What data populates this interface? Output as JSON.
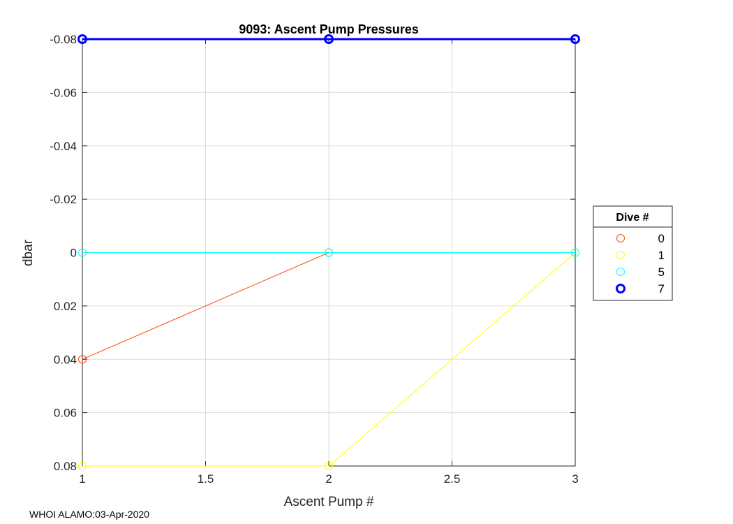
{
  "chart_data": {
    "type": "line",
    "title": "9093: Ascent Pump Pressures",
    "xlabel": "Ascent Pump #",
    "ylabel": "dbar",
    "xlim": [
      1,
      3
    ],
    "ylim": [
      -0.08,
      0.08
    ],
    "y_reversed": true,
    "grid": true,
    "xticks": [
      1,
      1.5,
      2,
      2.5,
      3
    ],
    "xtick_labels": [
      "1",
      "1.5",
      "2",
      "2.5",
      "3"
    ],
    "yticks": [
      -0.08,
      -0.06,
      -0.04,
      -0.02,
      0,
      0.02,
      0.04,
      0.06,
      0.08
    ],
    "ytick_labels": [
      "-0.08",
      "-0.06",
      "-0.04",
      "-0.02",
      "0",
      "0.02",
      "0.04",
      "0.06",
      "0.08"
    ],
    "x": [
      1,
      2,
      3
    ],
    "series": [
      {
        "name": "0",
        "values": [
          0.04,
          0,
          0
        ],
        "color": "#ff4500",
        "width": 1,
        "marker_width": 1
      },
      {
        "name": "1",
        "values": [
          0.08,
          0.08,
          0
        ],
        "color": "#ffff00",
        "width": 1,
        "marker_width": 1
      },
      {
        "name": "5",
        "values": [
          0,
          0,
          0
        ],
        "color": "#00ffff",
        "width": 1,
        "marker_width": 1
      },
      {
        "name": "7",
        "values": [
          -0.08,
          -0.08,
          -0.08
        ],
        "color": "#0000ff",
        "width": 3,
        "marker_width": 3
      }
    ],
    "legend": {
      "title": "Dive #",
      "placement": "right"
    }
  },
  "footer": "WHOI ALAMO:03-Apr-2020"
}
